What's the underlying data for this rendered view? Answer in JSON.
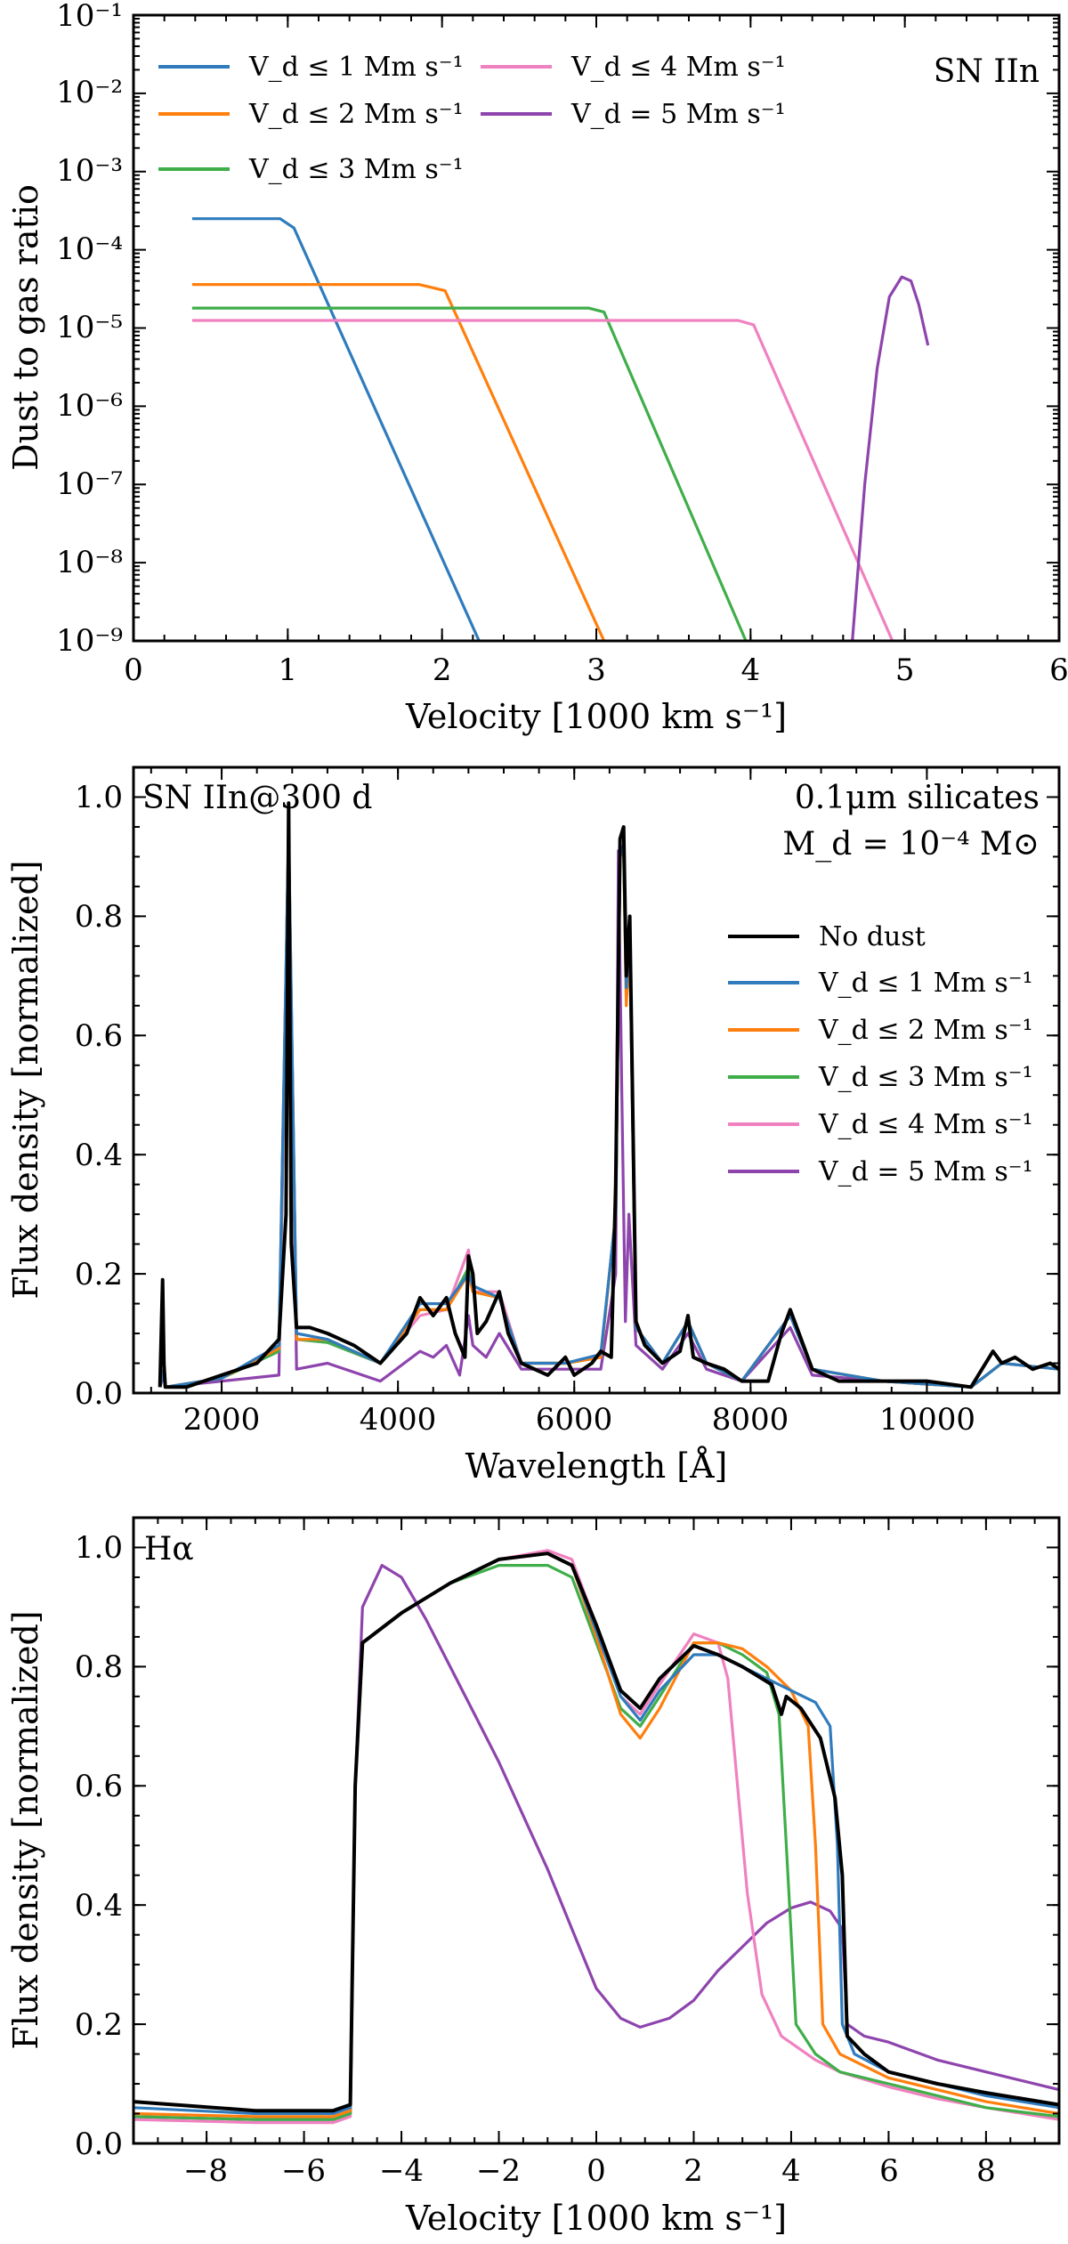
{
  "colors": {
    "blue": "#2f7bbd",
    "orange": "#ff7f0e",
    "green": "#3fae49",
    "pink": "#f081c0",
    "purple": "#8e44ad",
    "black": "#000000"
  },
  "chart_data": [
    {
      "type": "line",
      "xlabel": "Velocity [1000 km s⁻¹]",
      "ylabel": "Dust to gas ratio",
      "annotation": "SN IIn",
      "xlim": [
        0,
        6
      ],
      "ylim": [
        1e-09,
        0.1
      ],
      "yscale": "log",
      "x_ticks": [
        "0",
        "1",
        "2",
        "3",
        "4",
        "5",
        "6"
      ],
      "y_ticks": [
        "10⁻⁹",
        "10⁻⁸",
        "10⁻⁷",
        "10⁻⁶",
        "10⁻⁵",
        "10⁻⁴",
        "10⁻³",
        "10⁻²",
        "10⁻¹"
      ],
      "legend_position": "top-left",
      "series": [
        {
          "name": "V_d ≤ 1 Mm s⁻¹",
          "color": "blue",
          "x": [
            0.38,
            0.95,
            1.04,
            2.24
          ],
          "y": [
            0.00025,
            0.00025,
            0.00019,
            1e-09
          ]
        },
        {
          "name": "V_d ≤ 2 Mm s⁻¹",
          "color": "orange",
          "x": [
            0.38,
            1.85,
            2.02,
            3.05
          ],
          "y": [
            3.6e-05,
            3.6e-05,
            3e-05,
            1e-09
          ]
        },
        {
          "name": "V_d ≤ 3 Mm s⁻¹",
          "color": "green",
          "x": [
            0.38,
            2.95,
            3.05,
            3.97
          ],
          "y": [
            1.8e-05,
            1.8e-05,
            1.6e-05,
            1e-09
          ]
        },
        {
          "name": "V_d ≤ 4 Mm s⁻¹",
          "color": "pink",
          "x": [
            0.38,
            3.92,
            4.02,
            4.92
          ],
          "y": [
            1.25e-05,
            1.25e-05,
            1.1e-05,
            1e-09
          ]
        },
        {
          "name": "V_d = 5 Mm s⁻¹",
          "color": "purple",
          "x": [
            4.66,
            4.74,
            4.82,
            4.9,
            4.98,
            5.04,
            5.09,
            5.15
          ],
          "y": [
            1e-09,
            1e-07,
            3e-06,
            2.5e-05,
            4.5e-05,
            4e-05,
            2e-05,
            6e-06
          ]
        }
      ]
    },
    {
      "type": "line",
      "xlabel": "Wavelength [Å]",
      "ylabel": "Flux density [normalized]",
      "annotation_left": "SN IIn@300 d",
      "annotation_right_1": "0.1μm silicates",
      "annotation_right_2": "M_d = 10⁻⁴ M⊙",
      "xlim": [
        1000,
        11500
      ],
      "ylim": [
        0,
        1.05
      ],
      "x_ticks": [
        "2000",
        "4000",
        "6000",
        "8000",
        "10000"
      ],
      "y_ticks": [
        "0.0",
        "0.2",
        "0.4",
        "0.6",
        "0.8",
        "1.0"
      ],
      "legend_position": "right",
      "series": [
        {
          "name": "No dust",
          "color": "black",
          "x": [
            1300,
            1330,
            1345,
            1360,
            1400,
            1600,
            2000,
            2400,
            2650,
            2730,
            2760,
            2790,
            2850,
            3000,
            3200,
            3500,
            3800,
            4100,
            4250,
            4400,
            4550,
            4650,
            4760,
            4800,
            4850,
            4900,
            5000,
            5150,
            5250,
            5400,
            5700,
            5900,
            6000,
            6200,
            6300,
            6420,
            6470,
            6520,
            6560,
            6590,
            6630,
            6700,
            6800,
            7000,
            7200,
            7290,
            7350,
            7500,
            7700,
            7900,
            8200,
            8350,
            8450,
            8550,
            8700,
            9000,
            9500,
            10000,
            10500,
            10750,
            10850,
            11000,
            11200,
            11400,
            11500
          ],
          "y": [
            0.01,
            0.19,
            0.05,
            0.01,
            0.01,
            0.01,
            0.03,
            0.05,
            0.09,
            0.3,
            0.99,
            0.25,
            0.11,
            0.11,
            0.1,
            0.08,
            0.05,
            0.1,
            0.16,
            0.13,
            0.16,
            0.1,
            0.06,
            0.23,
            0.2,
            0.1,
            0.12,
            0.17,
            0.1,
            0.05,
            0.03,
            0.06,
            0.03,
            0.05,
            0.07,
            0.06,
            0.35,
            0.93,
            0.95,
            0.7,
            0.8,
            0.12,
            0.08,
            0.05,
            0.07,
            0.13,
            0.06,
            0.05,
            0.04,
            0.02,
            0.02,
            0.1,
            0.14,
            0.1,
            0.04,
            0.02,
            0.02,
            0.02,
            0.01,
            0.07,
            0.05,
            0.06,
            0.04,
            0.05,
            0.04
          ]
        },
        {
          "name": "V_d ≤ 1 Mm s⁻¹",
          "color": "blue",
          "x": [
            1300,
            1345,
            1360,
            2000,
            2650,
            2760,
            2850,
            3200,
            3800,
            4250,
            4550,
            4800,
            4850,
            5150,
            5400,
            5900,
            6300,
            6470,
            6520,
            6560,
            6590,
            6630,
            6700,
            7000,
            7290,
            7500,
            7900,
            8450,
            8700,
            9500,
            10500,
            10850,
            11500
          ],
          "y": [
            0.01,
            0.04,
            0.01,
            0.025,
            0.08,
            0.95,
            0.1,
            0.09,
            0.05,
            0.15,
            0.15,
            0.2,
            0.18,
            0.16,
            0.05,
            0.05,
            0.065,
            0.3,
            0.9,
            0.92,
            0.68,
            0.77,
            0.11,
            0.05,
            0.12,
            0.05,
            0.02,
            0.13,
            0.04,
            0.02,
            0.01,
            0.05,
            0.04
          ]
        },
        {
          "name": "V_d ≤ 2 Mm s⁻¹",
          "color": "orange",
          "x": [
            1300,
            1345,
            1360,
            2000,
            2650,
            2760,
            2850,
            3200,
            3800,
            4250,
            4550,
            4800,
            4850,
            5150,
            5400,
            5900,
            6300,
            6470,
            6520,
            6560,
            6590,
            6630,
            6700,
            7000,
            7290,
            7500,
            7900,
            8450,
            8700,
            9500,
            10500,
            10850,
            11500
          ],
          "y": [
            0.01,
            0.04,
            0.01,
            0.025,
            0.075,
            0.94,
            0.09,
            0.09,
            0.05,
            0.14,
            0.14,
            0.2,
            0.17,
            0.16,
            0.05,
            0.05,
            0.06,
            0.3,
            0.9,
            0.91,
            0.65,
            0.76,
            0.11,
            0.05,
            0.12,
            0.05,
            0.02,
            0.13,
            0.04,
            0.02,
            0.01,
            0.05,
            0.04
          ]
        },
        {
          "name": "V_d ≤ 3 Mm s⁻¹",
          "color": "green",
          "x": [
            1300,
            1345,
            1360,
            2000,
            2650,
            2760,
            2850,
            3200,
            3800,
            4250,
            4550,
            4800,
            4850,
            5150,
            5400,
            5900,
            6300,
            6470,
            6520,
            6560,
            6590,
            6630,
            6700,
            7000,
            7290,
            7500,
            7900,
            8450,
            8700,
            9500,
            10500,
            10850,
            11500
          ],
          "y": [
            0.01,
            0.04,
            0.01,
            0.025,
            0.07,
            0.94,
            0.09,
            0.085,
            0.05,
            0.14,
            0.14,
            0.21,
            0.17,
            0.16,
            0.05,
            0.05,
            0.06,
            0.3,
            0.9,
            0.91,
            0.66,
            0.76,
            0.11,
            0.05,
            0.12,
            0.05,
            0.02,
            0.13,
            0.04,
            0.02,
            0.01,
            0.05,
            0.04
          ]
        },
        {
          "name": "V_d ≤ 4 Mm s⁻¹",
          "color": "pink",
          "x": [
            1300,
            1345,
            1360,
            2000,
            2650,
            2760,
            2850,
            3200,
            3800,
            4250,
            4550,
            4800,
            4850,
            5150,
            5400,
            5900,
            6300,
            6470,
            6520,
            6560,
            6590,
            6630,
            6700,
            7000,
            7290,
            7500,
            7900,
            8450,
            8700,
            9500,
            10500,
            10850,
            11500
          ],
          "y": [
            0.01,
            0.04,
            0.01,
            0.025,
            0.07,
            0.93,
            0.09,
            0.085,
            0.05,
            0.13,
            0.14,
            0.24,
            0.17,
            0.17,
            0.05,
            0.05,
            0.06,
            0.3,
            0.91,
            0.92,
            0.67,
            0.77,
            0.11,
            0.05,
            0.12,
            0.05,
            0.02,
            0.13,
            0.04,
            0.02,
            0.01,
            0.05,
            0.04
          ]
        },
        {
          "name": "V_d = 5 Mm s⁻¹",
          "color": "purple",
          "x": [
            1300,
            1345,
            1360,
            2000,
            2650,
            2760,
            2850,
            3200,
            3800,
            4250,
            4400,
            4550,
            4700,
            4800,
            4850,
            5000,
            5150,
            5400,
            5900,
            6300,
            6470,
            6500,
            6540,
            6580,
            6620,
            6700,
            7000,
            7290,
            7500,
            7900,
            8450,
            8700,
            9500,
            10500,
            10850,
            11500
          ],
          "y": [
            0.01,
            0.03,
            0.01,
            0.02,
            0.03,
            0.93,
            0.04,
            0.05,
            0.02,
            0.07,
            0.06,
            0.08,
            0.03,
            0.13,
            0.08,
            0.06,
            0.1,
            0.04,
            0.04,
            0.04,
            0.2,
            0.91,
            0.5,
            0.12,
            0.3,
            0.08,
            0.04,
            0.1,
            0.04,
            0.02,
            0.11,
            0.03,
            0.02,
            0.01,
            0.05,
            0.04
          ]
        }
      ]
    },
    {
      "type": "line",
      "xlabel": "Velocity [1000 km s⁻¹]",
      "ylabel": "Flux density [normalized]",
      "annotation": "Hα",
      "xlim": [
        -9.5,
        9.5
      ],
      "ylim": [
        0,
        1.05
      ],
      "x_ticks": [
        "−8",
        "−6",
        "−4",
        "−2",
        "0",
        "2",
        "4",
        "6",
        "8"
      ],
      "y_ticks": [
        "0.0",
        "0.2",
        "0.4",
        "0.6",
        "0.8",
        "1.0"
      ],
      "series": [
        {
          "name": "No dust",
          "color": "black",
          "x": [
            -9.5,
            -7,
            -5.4,
            -5.05,
            -4.95,
            -4.8,
            -4,
            -3,
            -2,
            -1,
            -0.5,
            0,
            0.5,
            0.9,
            1.3,
            2,
            2.5,
            3,
            3.6,
            3.8,
            3.9,
            4.2,
            4.6,
            4.9,
            5.05,
            5.15,
            5.5,
            6,
            7,
            8,
            9.5
          ],
          "y": [
            0.07,
            0.055,
            0.055,
            0.065,
            0.6,
            0.84,
            0.89,
            0.94,
            0.98,
            0.99,
            0.97,
            0.87,
            0.76,
            0.73,
            0.78,
            0.835,
            0.82,
            0.8,
            0.77,
            0.72,
            0.75,
            0.73,
            0.68,
            0.58,
            0.45,
            0.18,
            0.15,
            0.12,
            0.1,
            0.085,
            0.065
          ]
        },
        {
          "name": "V_d ≤ 1 Mm s⁻¹",
          "color": "blue",
          "x": [
            -9.5,
            -7,
            -5.4,
            -5.05,
            -4.95,
            -4.8,
            -4,
            -3,
            -2,
            -1,
            -0.5,
            0,
            0.5,
            0.9,
            1.3,
            2,
            2.5,
            3,
            3.5,
            4,
            4.5,
            4.8,
            4.95,
            5.05,
            5.3,
            6,
            7,
            8,
            9.5
          ],
          "y": [
            0.06,
            0.05,
            0.05,
            0.06,
            0.6,
            0.84,
            0.89,
            0.94,
            0.98,
            0.99,
            0.97,
            0.86,
            0.75,
            0.71,
            0.76,
            0.82,
            0.82,
            0.8,
            0.78,
            0.76,
            0.74,
            0.7,
            0.5,
            0.2,
            0.15,
            0.12,
            0.1,
            0.08,
            0.06
          ]
        },
        {
          "name": "V_d ≤ 2 Mm s⁻¹",
          "color": "orange",
          "x": [
            -9.5,
            -7,
            -5.4,
            -5.05,
            -4.95,
            -4.8,
            -4,
            -3,
            -2,
            -1,
            -0.5,
            0,
            0.5,
            0.9,
            1.3,
            2,
            2.5,
            3,
            3.5,
            4,
            4.35,
            4.5,
            4.65,
            5,
            6,
            7,
            8,
            9.5
          ],
          "y": [
            0.05,
            0.045,
            0.045,
            0.055,
            0.6,
            0.84,
            0.89,
            0.94,
            0.98,
            0.99,
            0.97,
            0.85,
            0.72,
            0.68,
            0.73,
            0.84,
            0.84,
            0.83,
            0.8,
            0.76,
            0.7,
            0.5,
            0.2,
            0.15,
            0.11,
            0.09,
            0.07,
            0.05
          ]
        },
        {
          "name": "V_d ≤ 3 Mm s⁻¹",
          "color": "green",
          "x": [
            -9.5,
            -7,
            -5.4,
            -5.05,
            -4.95,
            -4.8,
            -4,
            -3,
            -2,
            -1.5,
            -1,
            -0.5,
            0,
            0.5,
            0.9,
            1.3,
            2,
            2.5,
            3,
            3.5,
            3.75,
            3.9,
            4.1,
            4.5,
            5,
            6,
            7,
            8,
            9.5
          ],
          "y": [
            0.045,
            0.04,
            0.04,
            0.05,
            0.6,
            0.84,
            0.89,
            0.94,
            0.97,
            0.97,
            0.97,
            0.95,
            0.84,
            0.73,
            0.7,
            0.75,
            0.84,
            0.84,
            0.82,
            0.79,
            0.72,
            0.5,
            0.2,
            0.15,
            0.12,
            0.1,
            0.08,
            0.06,
            0.045
          ]
        },
        {
          "name": "V_d ≤ 4 Mm s⁻¹",
          "color": "pink",
          "x": [
            -9.5,
            -7,
            -5.4,
            -5.05,
            -4.95,
            -4.8,
            -4,
            -3,
            -2,
            -1,
            -0.5,
            0,
            0.5,
            0.9,
            1.3,
            2,
            2.5,
            2.7,
            2.9,
            3.1,
            3.4,
            3.8,
            4.5,
            5,
            6,
            7,
            8,
            9.5
          ],
          "y": [
            0.04,
            0.035,
            0.035,
            0.045,
            0.6,
            0.84,
            0.89,
            0.94,
            0.98,
            0.995,
            0.98,
            0.87,
            0.75,
            0.72,
            0.77,
            0.855,
            0.84,
            0.78,
            0.6,
            0.42,
            0.25,
            0.18,
            0.14,
            0.12,
            0.095,
            0.075,
            0.06,
            0.04
          ]
        },
        {
          "name": "V_d = 5 Mm s⁻¹",
          "color": "purple",
          "x": [
            -9.5,
            -7,
            -5.4,
            -5.05,
            -4.95,
            -4.8,
            -4.4,
            -4,
            -3.5,
            -3,
            -2.5,
            -2,
            -1.5,
            -1,
            -0.5,
            0,
            0.5,
            0.9,
            1.5,
            2,
            2.5,
            3,
            3.5,
            4,
            4.4,
            4.8,
            5.05,
            5.15,
            5.5,
            6,
            7,
            8,
            9.5
          ],
          "y": [
            0.045,
            0.04,
            0.04,
            0.05,
            0.6,
            0.9,
            0.97,
            0.95,
            0.88,
            0.8,
            0.72,
            0.64,
            0.55,
            0.46,
            0.36,
            0.26,
            0.21,
            0.195,
            0.21,
            0.24,
            0.29,
            0.33,
            0.37,
            0.395,
            0.405,
            0.39,
            0.36,
            0.2,
            0.18,
            0.17,
            0.14,
            0.12,
            0.09
          ]
        }
      ]
    }
  ]
}
